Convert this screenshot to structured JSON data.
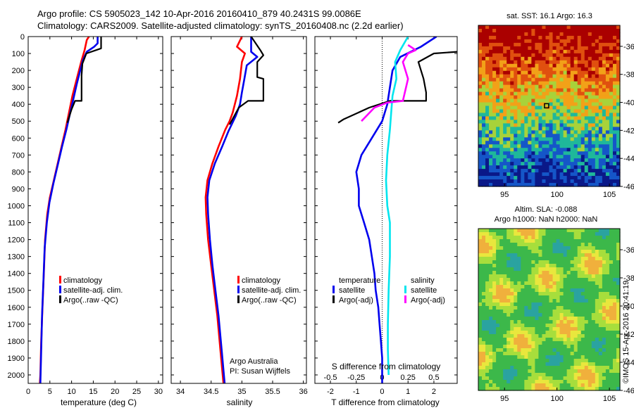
{
  "header": {
    "line1": "Argo profile: CS 5905023_142 10-Apr-2016 20160410_879 40.2431S 99.0086E",
    "line2": "Climatology: CARS2009. Satellite-adjusted climatology: synTS_20160408.nc (2.2d earlier)"
  },
  "colors": {
    "climatology": "#ff0000",
    "satellite": "#0000ee",
    "argo": "#000000",
    "salinity_satellite": "#00e5ee",
    "salinity_argo": "#ff00ff"
  },
  "chart_data": [
    {
      "type": "line",
      "panel": "temperature",
      "xlabel": "temperature (deg C)",
      "ylabel": "",
      "xlim": [
        0,
        31
      ],
      "ylim": [
        2050,
        0
      ],
      "xticks": [
        0,
        5,
        10,
        15,
        20,
        25,
        30
      ],
      "yticks": [
        0,
        100,
        200,
        300,
        400,
        500,
        600,
        700,
        800,
        900,
        1000,
        1100,
        1200,
        1300,
        1400,
        1500,
        1600,
        1700,
        1800,
        1900,
        2000
      ],
      "legend": [
        "climatology",
        "satellite-adj. clim.",
        "Argo(..raw -QC)"
      ],
      "series": [
        {
          "name": "climatology",
          "color": "#ff0000",
          "points": [
            [
              14.0,
              0
            ],
            [
              13.5,
              20
            ],
            [
              13.0,
              80
            ],
            [
              12.2,
              150
            ],
            [
              11.2,
              250
            ],
            [
              10.2,
              350
            ],
            [
              9.4,
              450
            ],
            [
              8.6,
              550
            ],
            [
              7.7,
              650
            ],
            [
              6.8,
              750
            ],
            [
              5.9,
              850
            ],
            [
              5.0,
              950
            ],
            [
              4.4,
              1050
            ],
            [
              3.9,
              1200
            ],
            [
              3.6,
              1400
            ],
            [
              3.3,
              1600
            ],
            [
              3.0,
              1800
            ],
            [
              2.8,
              2000
            ],
            [
              2.7,
              2050
            ]
          ]
        },
        {
          "name": "satellite-adj. clim.",
          "color": "#0000ee",
          "points": [
            [
              16.0,
              0
            ],
            [
              16.0,
              40
            ],
            [
              15.2,
              60
            ],
            [
              13.5,
              90
            ],
            [
              12.6,
              140
            ],
            [
              12.0,
              200
            ],
            [
              11.2,
              280
            ],
            [
              10.4,
              370
            ],
            [
              9.6,
              460
            ],
            [
              8.8,
              550
            ],
            [
              7.8,
              650
            ],
            [
              6.8,
              760
            ],
            [
              5.8,
              870
            ],
            [
              4.9,
              980
            ],
            [
              4.3,
              1100
            ],
            [
              3.8,
              1250
            ],
            [
              3.5,
              1450
            ],
            [
              3.2,
              1650
            ],
            [
              3.0,
              1850
            ],
            [
              2.8,
              2050
            ]
          ]
        },
        {
          "name": "Argo(..raw -QC)",
          "color": "#000000",
          "points": [
            [
              16.8,
              0
            ],
            [
              16.8,
              70
            ],
            [
              13.4,
              100
            ],
            [
              12.5,
              160
            ],
            [
              12.3,
              230
            ],
            [
              12.3,
              380
            ],
            [
              10.8,
              380
            ],
            [
              10.0,
              430
            ],
            [
              9.0,
              510
            ]
          ]
        }
      ]
    },
    {
      "type": "line",
      "panel": "salinity",
      "xlabel": "salinity",
      "ylabel": "",
      "xlim": [
        33.85,
        36.05
      ],
      "ylim": [
        2050,
        0
      ],
      "xticks": [
        34,
        34.5,
        35,
        35.5,
        36
      ],
      "legend": [
        "climatology",
        "satellite-adj. clim.",
        "Argo(..raw -QC)"
      ],
      "annotations": [
        "Argo Australia",
        "PI: Susan Wijffels"
      ],
      "series": [
        {
          "name": "climatology",
          "color": "#ff0000",
          "points": [
            [
              35.0,
              0
            ],
            [
              34.92,
              60
            ],
            [
              35.05,
              100
            ],
            [
              35.0,
              150
            ],
            [
              34.97,
              250
            ],
            [
              34.92,
              350
            ],
            [
              34.85,
              450
            ],
            [
              34.8,
              500
            ],
            [
              34.73,
              550
            ],
            [
              34.62,
              650
            ],
            [
              34.52,
              750
            ],
            [
              34.44,
              850
            ],
            [
              34.41,
              950
            ],
            [
              34.42,
              1050
            ],
            [
              34.45,
              1200
            ],
            [
              34.5,
              1350
            ],
            [
              34.55,
              1500
            ],
            [
              34.6,
              1650
            ],
            [
              34.65,
              1850
            ],
            [
              34.7,
              2050
            ]
          ]
        },
        {
          "name": "satellite-adj. clim.",
          "color": "#0000ee",
          "points": [
            [
              35.15,
              0
            ],
            [
              35.15,
              90
            ],
            [
              35.25,
              120
            ],
            [
              35.08,
              170
            ],
            [
              35.04,
              250
            ],
            [
              35.0,
              330
            ],
            [
              34.97,
              400
            ],
            [
              34.9,
              470
            ],
            [
              34.78,
              560
            ],
            [
              34.68,
              650
            ],
            [
              34.56,
              750
            ],
            [
              34.47,
              850
            ],
            [
              34.44,
              950
            ],
            [
              34.45,
              1050
            ],
            [
              34.48,
              1200
            ],
            [
              34.52,
              1350
            ],
            [
              34.57,
              1500
            ],
            [
              34.62,
              1650
            ],
            [
              34.67,
              1850
            ],
            [
              34.72,
              2050
            ]
          ]
        },
        {
          "name": "Argo(..raw -QC)",
          "color": "#000000",
          "points": [
            [
              35.15,
              0
            ],
            [
              35.3,
              80
            ],
            [
              35.35,
              110
            ],
            [
              35.25,
              150
            ],
            [
              35.25,
              240
            ],
            [
              35.35,
              250
            ],
            [
              35.35,
              380
            ],
            [
              35.1,
              380
            ],
            [
              34.95,
              420
            ],
            [
              34.8,
              520
            ]
          ]
        }
      ]
    },
    {
      "type": "line",
      "panel": "differences",
      "xlabel": "T difference from climatology",
      "xlabel_top": "S difference from climatology",
      "xlim": [
        -2.6,
        2.9
      ],
      "ylim": [
        2050,
        0
      ],
      "xticks": [
        -2,
        -1,
        0,
        1,
        2
      ],
      "xticks_s": [
        -0.5,
        -0.25,
        0,
        0.25,
        0.5
      ],
      "x_tick_labels_s": [
        "-0.5",
        "-0.25",
        "0",
        "0.25",
        "0.5"
      ],
      "legend_groups": [
        "temperature",
        "salinity"
      ],
      "legend": [
        "satellite",
        "Argo(-adj)",
        "satellite",
        "Argo(-adj)"
      ],
      "series": [
        {
          "name": "satellite",
          "group": "temperature",
          "color": "#0000ee",
          "points": [
            [
              2.1,
              0
            ],
            [
              1.5,
              60
            ],
            [
              0.7,
              120
            ],
            [
              0.4,
              200
            ],
            [
              0.3,
              300
            ],
            [
              0.2,
              400
            ],
            [
              0.0,
              500
            ],
            [
              -0.4,
              600
            ],
            [
              -0.8,
              700
            ],
            [
              -1.0,
              800
            ],
            [
              -0.9,
              900
            ],
            [
              -0.9,
              1000
            ],
            [
              -0.7,
              1100
            ],
            [
              -0.5,
              1200
            ],
            [
              -0.4,
              1300
            ],
            [
              -0.3,
              1400
            ],
            [
              -0.25,
              1500
            ],
            [
              -0.15,
              1600
            ],
            [
              -0.1,
              1700
            ],
            [
              -0.05,
              1800
            ],
            [
              0.0,
              1900
            ],
            [
              0.0,
              2050
            ]
          ]
        },
        {
          "name": "Argo(-adj)",
          "group": "temperature",
          "color": "#000000",
          "points": [
            [
              2.9,
              90
            ],
            [
              2.0,
              100
            ],
            [
              1.4,
              150
            ],
            [
              1.6,
              250
            ],
            [
              1.7,
              330
            ],
            [
              1.7,
              380
            ],
            [
              0.3,
              380
            ],
            [
              -0.5,
              420
            ],
            [
              -1.5,
              490
            ],
            [
              -1.7,
              510
            ]
          ]
        },
        {
          "name": "satellite",
          "group": "salinity",
          "color": "#00e5ee",
          "points": [
            [
              1.0,
              0
            ],
            [
              0.7,
              80
            ],
            [
              0.5,
              150
            ],
            [
              0.55,
              250
            ],
            [
              0.4,
              350
            ],
            [
              0.35,
              450
            ],
            [
              0.3,
              550
            ],
            [
              0.2,
              700
            ],
            [
              0.15,
              850
            ],
            [
              0.2,
              1000
            ],
            [
              0.3,
              1100
            ],
            [
              0.3,
              1300
            ],
            [
              0.25,
              1500
            ],
            [
              0.22,
              1700
            ],
            [
              0.22,
              1850
            ],
            [
              0.25,
              2000
            ]
          ]
        },
        {
          "name": "Argo(-adj)",
          "group": "salinity",
          "color": "#ff00ff",
          "points": [
            [
              1.0,
              50
            ],
            [
              1.3,
              80
            ],
            [
              1.0,
              100
            ],
            [
              0.8,
              150
            ],
            [
              1.0,
              250
            ],
            [
              0.8,
              380
            ],
            [
              0.2,
              390
            ],
            [
              -0.3,
              420
            ],
            [
              -0.8,
              500
            ]
          ]
        }
      ]
    },
    {
      "type": "heatmap",
      "panel": "satellite SST map",
      "title": "sat. SST: 16.1  Argo: 16.3",
      "xlim": [
        92.5,
        106
      ],
      "ylim": [
        -46,
        -34.5
      ],
      "xticks": [
        95,
        100,
        105
      ],
      "yticks": [
        -36,
        -38,
        -40,
        -42,
        -44,
        -46
      ],
      "argo_position": [
        99.0086,
        -40.2431
      ],
      "colors": [
        "#aa0000",
        "#e0500f",
        "#f2a118",
        "#a8d23a",
        "#1fb89a",
        "#1556c8",
        "#0a1888"
      ]
    },
    {
      "type": "heatmap",
      "panel": "altimetry SLA map",
      "title_line1": "Altim. SLA: -0.088",
      "title_line2": "Argo h1000: NaN  h2000: NaN",
      "xlim": [
        92.5,
        106
      ],
      "ylim": [
        -46,
        -34.5
      ],
      "xticks": [
        95,
        100,
        105
      ],
      "yticks": [
        -36,
        -38,
        -40,
        -42,
        -44,
        -46
      ],
      "colors": [
        "#3cb84a",
        "#a7de3c",
        "#e9e73d",
        "#f0b03c",
        "#2aa3a0",
        "#1fd6e0"
      ]
    }
  ],
  "side_text": "©IMOS 15-Apr-2016 20:41:19"
}
